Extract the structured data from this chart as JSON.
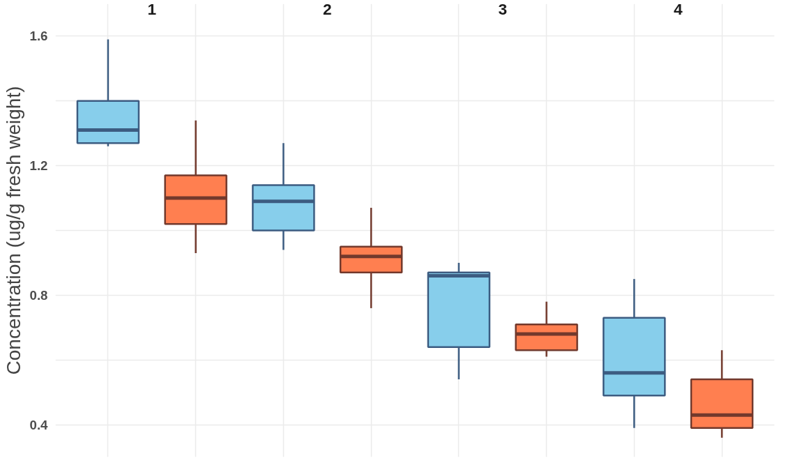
{
  "chart_data": {
    "type": "box",
    "ylabel": "Concentration (ug/g fresh weight)",
    "annotations": [
      "1",
      "2",
      "3",
      "4"
    ],
    "categories": [
      null,
      null,
      null,
      null,
      null,
      null,
      null,
      null
    ],
    "colors": [
      "#87ceeb",
      "#ff7f50",
      "#87ceeb",
      "#ff7f50",
      "#87ceeb",
      "#ff7f50",
      "#87ceeb",
      "#ff7f50"
    ],
    "boxes": [
      {
        "low": 1.26,
        "q1": 1.27,
        "median": 1.31,
        "q3": 1.4,
        "high": 1.59
      },
      {
        "low": 0.93,
        "q1": 1.02,
        "median": 1.1,
        "q3": 1.17,
        "high": 1.34
      },
      {
        "low": 0.94,
        "q1": 1.0,
        "median": 1.09,
        "q3": 1.14,
        "high": 1.27
      },
      {
        "low": 0.76,
        "q1": 0.87,
        "median": 0.92,
        "q3": 0.95,
        "high": 1.07
      },
      {
        "low": 0.54,
        "q1": 0.64,
        "median": 0.86,
        "q3": 0.87,
        "high": 0.9
      },
      {
        "low": 0.61,
        "q1": 0.63,
        "median": 0.68,
        "q3": 0.71,
        "high": 0.78
      },
      {
        "low": 0.39,
        "q1": 0.49,
        "median": 0.56,
        "q3": 0.73,
        "high": 0.85
      },
      {
        "low": 0.36,
        "q1": 0.39,
        "median": 0.43,
        "q3": 0.54,
        "high": 0.63
      }
    ],
    "ylim": [
      0.3,
      1.7
    ],
    "yticks": [
      0.4,
      {
        "value": 0.6,
        "label": null
      },
      0.8,
      {
        "value": 1.0,
        "label": null
      },
      1.2,
      {
        "value": 1.4,
        "label": null
      },
      1.6
    ],
    "grid": true,
    "tick_labels": "y"
  }
}
